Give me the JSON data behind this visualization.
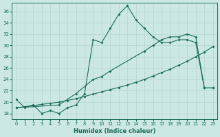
{
  "xlabel": "Humidex (Indice chaleur)",
  "bg_color": "#cce8e4",
  "line_color": "#1a6b5a",
  "grid_color": "#b8d8d4",
  "xlim": [
    -0.5,
    23.5
  ],
  "ylim": [
    17,
    37.5
  ],
  "yticks": [
    18,
    20,
    22,
    24,
    26,
    28,
    30,
    32,
    34,
    36
  ],
  "xticks": [
    0,
    1,
    2,
    3,
    4,
    5,
    6,
    7,
    8,
    9,
    10,
    11,
    12,
    13,
    14,
    15,
    16,
    17,
    18,
    19,
    20,
    21,
    22,
    23
  ],
  "line1_x": [
    0,
    1,
    2,
    3,
    4,
    5,
    6,
    7,
    8,
    9,
    10,
    11,
    12,
    13,
    14,
    15,
    16,
    17,
    18,
    19,
    20,
    21,
    22,
    23
  ],
  "line1_y": [
    20.5,
    19.0,
    19.5,
    18.0,
    18.5,
    18.0,
    19.0,
    19.5,
    21.5,
    31.0,
    30.5,
    33.0,
    35.5,
    37.0,
    34.5,
    33.0,
    31.5,
    30.5,
    30.5,
    31.0,
    31.0,
    30.5,
    22.5,
    22.5
  ],
  "line2_x": [
    0,
    1,
    2,
    3,
    4,
    5,
    6,
    7,
    8,
    9,
    10,
    11,
    12,
    13,
    14,
    15,
    16,
    17,
    18,
    19,
    20,
    21,
    22,
    23
  ],
  "line2_y": [
    19.0,
    19.2,
    19.4,
    19.6,
    19.8,
    20.0,
    20.3,
    20.6,
    21.0,
    21.4,
    21.8,
    22.2,
    22.6,
    23.0,
    23.5,
    24.0,
    24.6,
    25.2,
    25.8,
    26.5,
    27.2,
    28.0,
    28.8,
    29.8
  ],
  "line3_x": [
    0,
    5,
    7,
    9,
    10,
    11,
    15,
    16,
    17,
    18,
    19,
    20,
    21,
    22,
    23
  ],
  "line3_y": [
    19.0,
    19.5,
    21.5,
    24.0,
    24.5,
    25.5,
    29.0,
    30.0,
    31.0,
    31.5,
    31.5,
    32.0,
    31.5,
    22.5,
    22.5
  ]
}
